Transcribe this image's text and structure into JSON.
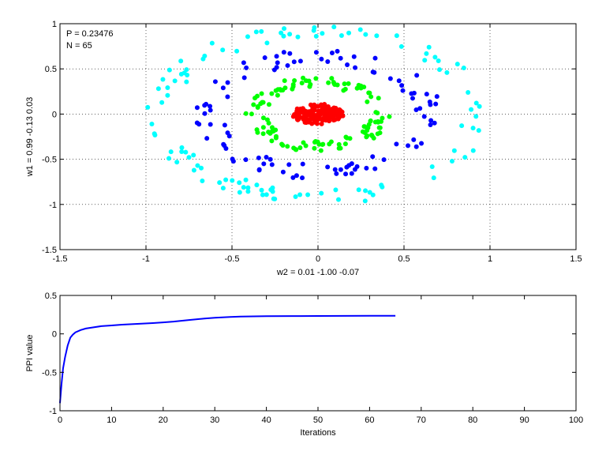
{
  "chart_data": [
    {
      "type": "scatter",
      "title": "",
      "xlabel": "w2 = 0.01  -1.00  -0.07",
      "ylabel": "w1 = 0.99  -0.13  0.03",
      "xlim": [
        -1.5,
        1.5
      ],
      "ylim": [
        -1.5,
        1
      ],
      "xticks": [
        "-1.5",
        "-1",
        "-0.5",
        "0",
        "0.5",
        "1",
        "1.5"
      ],
      "yticks": [
        "-1.5",
        "-1",
        "-0.5",
        "0",
        "0.5",
        "1"
      ],
      "grid": true,
      "annotations": [
        "P = 0.23476",
        "N = 65"
      ],
      "series": [
        {
          "color": "#00ffff",
          "shape": "ring",
          "radius": [
            0.84,
            1.0
          ],
          "count": 110
        },
        {
          "color": "#0000ff",
          "shape": "ring",
          "radius": [
            0.55,
            0.72
          ],
          "count": 100
        },
        {
          "color": "#00ff00",
          "shape": "ring",
          "radius": [
            0.3,
            0.42
          ],
          "count": 120
        },
        {
          "color": "#ff0000",
          "shape": "disc",
          "radius": [
            0.0,
            0.15
          ],
          "count": 160
        }
      ]
    },
    {
      "type": "line",
      "title": "",
      "xlabel": "Iterations",
      "ylabel": "PPI value",
      "xlim": [
        0,
        100
      ],
      "ylim": [
        -1,
        0.5
      ],
      "xticks": [
        "0",
        "10",
        "20",
        "30",
        "40",
        "50",
        "60",
        "70",
        "80",
        "90",
        "100"
      ],
      "yticks": [
        "-1",
        "-0.5",
        "0",
        "0.5"
      ],
      "grid": false,
      "series": [
        {
          "color": "#0000ff",
          "x": [
            0,
            0.3,
            0.6,
            1,
            1.5,
            2,
            2.5,
            3,
            4,
            5,
            6,
            8,
            10,
            12,
            15,
            18,
            20,
            22,
            25,
            28,
            30,
            33,
            35,
            40,
            45,
            50,
            55,
            60,
            65
          ],
          "y": [
            -0.9,
            -0.65,
            -0.45,
            -0.3,
            -0.15,
            -0.05,
            -0.01,
            0.02,
            0.05,
            0.07,
            0.08,
            0.1,
            0.11,
            0.12,
            0.13,
            0.14,
            0.15,
            0.16,
            0.18,
            0.2,
            0.21,
            0.22,
            0.225,
            0.23,
            0.232,
            0.233,
            0.234,
            0.235,
            0.235
          ]
        }
      ]
    }
  ]
}
